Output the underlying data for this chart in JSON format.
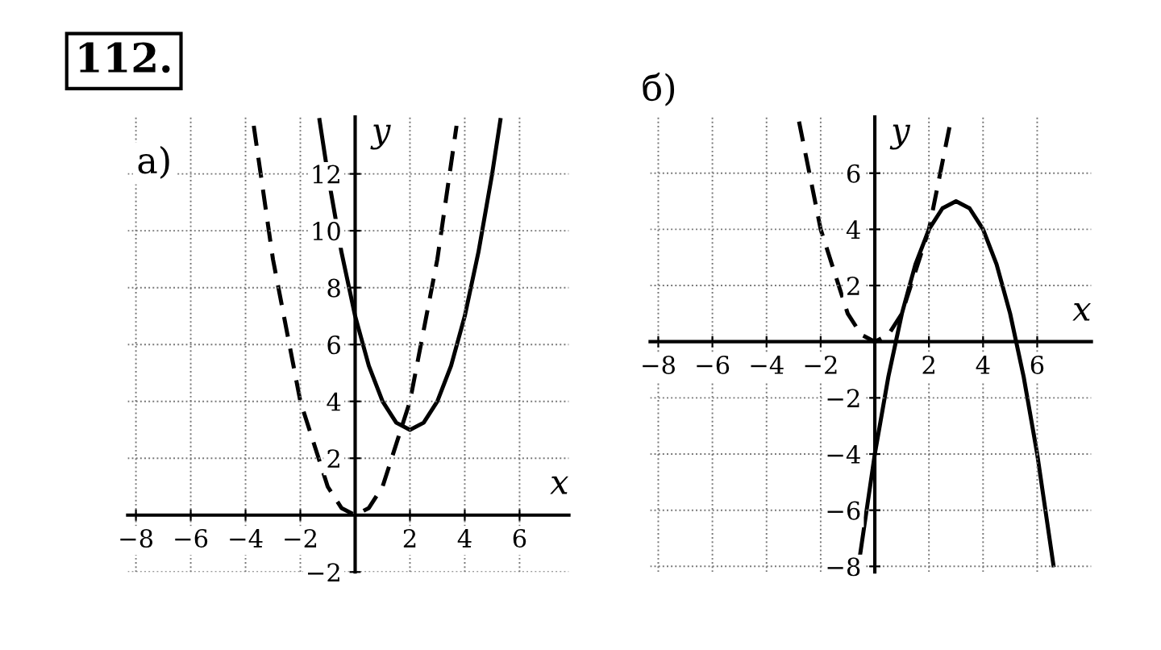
{
  "chart_data": [
    {
      "type": "line",
      "title": "а)",
      "xlabel": "x",
      "ylabel": "y",
      "annotations": [
        "112."
      ],
      "grid": true,
      "xlim": [
        -8.3,
        7.8
      ],
      "ylim": [
        -2,
        14
      ],
      "xticks": [
        -8,
        -6,
        -4,
        -2,
        2,
        4,
        6
      ],
      "yticks": [
        -2,
        2,
        4,
        6,
        8,
        10,
        12
      ],
      "series": [
        {
          "color": "#000000",
          "line_style": "solid",
          "x": [
            -1.3,
            -1,
            -0.5,
            0,
            0.5,
            1,
            1.5,
            2,
            2.5,
            3,
            3.5,
            4,
            4.5,
            5,
            5.3
          ],
          "values": [
            13.89,
            12,
            9.25,
            7,
            5.25,
            4,
            3.25,
            3,
            3.25,
            4,
            5.25,
            7,
            9.25,
            12,
            13.89
          ]
        },
        {
          "color": "#000000",
          "line_style": "dashed",
          "x": [
            -3.7,
            -3,
            -2,
            -1,
            -0.5,
            0,
            0.5,
            1,
            2,
            3,
            3.7
          ],
          "values": [
            13.69,
            9,
            4,
            1,
            0.25,
            0,
            0.25,
            1,
            4,
            9,
            13.69
          ]
        }
      ]
    },
    {
      "type": "line",
      "title": "б)",
      "xlabel": "x",
      "ylabel": "y",
      "grid": true,
      "xlim": [
        -8.3,
        8
      ],
      "ylim": [
        -8.2,
        8
      ],
      "xticks": [
        -8,
        -6,
        -4,
        -2,
        2,
        4,
        6
      ],
      "yticks": [
        -8,
        -6,
        -4,
        -2,
        2,
        4,
        6
      ],
      "series": [
        {
          "color": "#000000",
          "line_style": "solid",
          "x": [
            -0.6,
            0,
            0.5,
            1,
            1.5,
            2,
            2.5,
            3,
            3.5,
            4,
            4.5,
            5,
            5.5,
            6,
            6.6
          ],
          "values": [
            -7.96,
            -4,
            -1.25,
            1,
            2.75,
            4,
            4.75,
            5,
            4.75,
            4,
            2.75,
            1,
            -1.25,
            -4,
            -7.96
          ]
        },
        {
          "color": "#000000",
          "line_style": "dashed",
          "x": [
            -2.8,
            -2,
            -1,
            -0.5,
            0,
            0.5,
            1,
            2,
            2.8
          ],
          "values": [
            7.84,
            4,
            1,
            0.25,
            0,
            0.25,
            1,
            4,
            7.84
          ]
        }
      ]
    }
  ]
}
